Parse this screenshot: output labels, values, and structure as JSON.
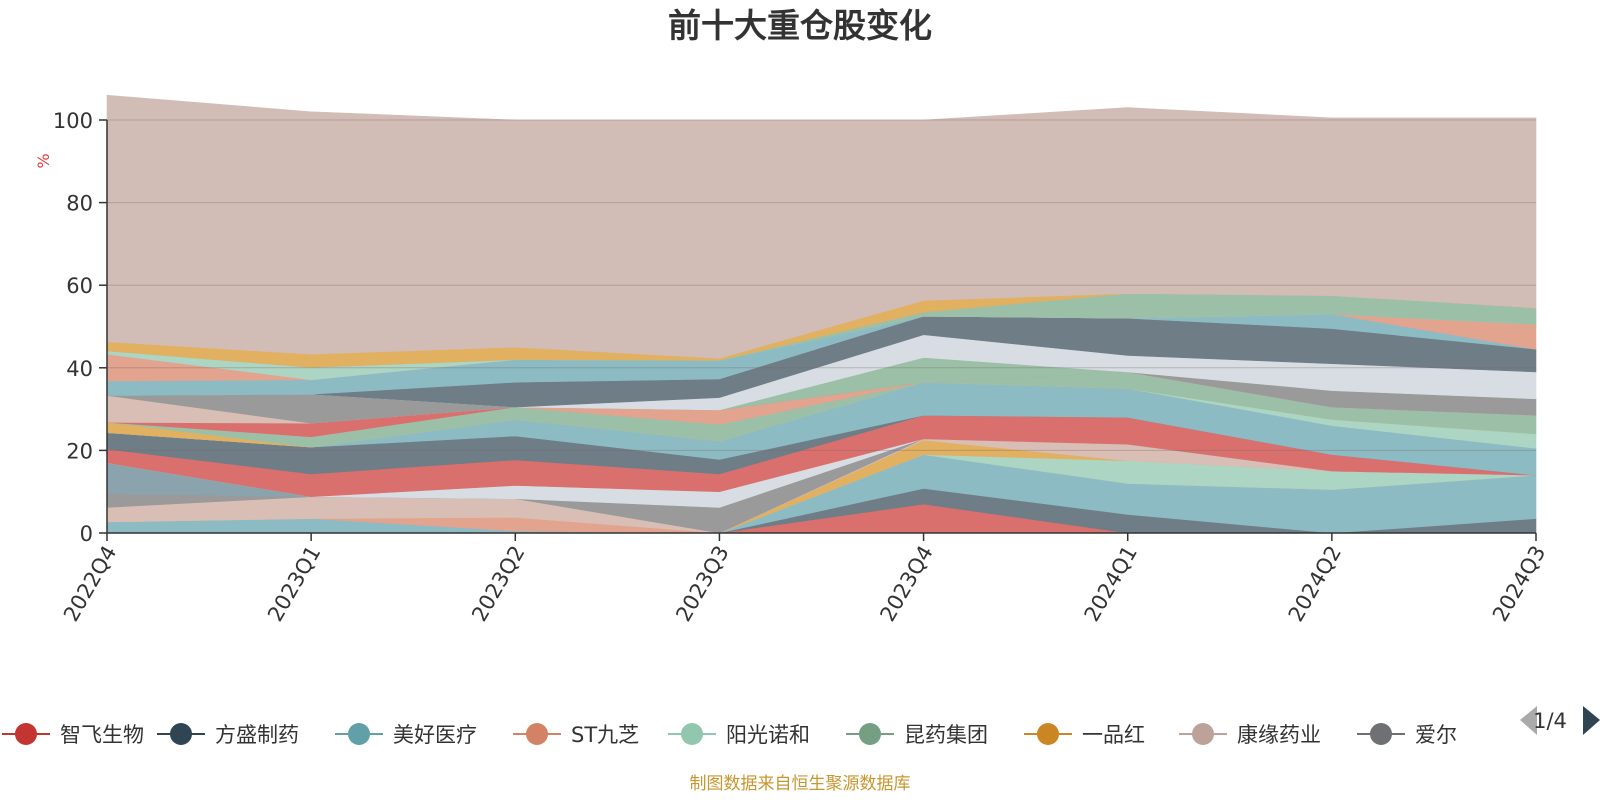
{
  "chart_data": {
    "type": "area",
    "stacked": true,
    "title": "前十大重仓股变化",
    "ylabel": "%",
    "ylim": [
      0,
      100
    ],
    "yticks": [
      0,
      20,
      40,
      60,
      80,
      100
    ],
    "grid": true,
    "categories": [
      "2022Q4",
      "2023Q1",
      "2023Q2",
      "2023Q3",
      "2023Q4",
      "2024Q1",
      "2024Q2",
      "2024Q3"
    ],
    "series": [
      {
        "name": "智飞生物",
        "color": "#d9706e",
        "values": [
          0,
          0,
          0,
          0,
          7,
          0,
          0,
          0
        ]
      },
      {
        "name": "方盛制药",
        "color": "#6f7d87",
        "values": [
          0,
          0,
          0,
          0,
          3.8,
          4.5,
          0,
          3.5
        ]
      },
      {
        "name": "美好医疗",
        "color": "#8dbbc4",
        "values": [
          2.7,
          3.5,
          0.5,
          0,
          8.2,
          7.5,
          10.5,
          10.5
        ]
      },
      {
        "name": "ST九芝",
        "color": "#e2a38f",
        "values": [
          0,
          0,
          3.3,
          0,
          0,
          0,
          0,
          0
        ]
      },
      {
        "name": "阳光诺和",
        "color": "#acd5c4",
        "values": [
          0,
          0,
          0,
          0,
          0,
          5.5,
          4.5,
          0
        ]
      },
      {
        "name": "昆药集团",
        "color": "#9cc0a7",
        "values": [
          0,
          0,
          0,
          0,
          0,
          0,
          0,
          0
        ]
      },
      {
        "name": "一品红",
        "color": "#e1b060",
        "values": [
          0,
          0,
          0,
          0,
          3.5,
          0,
          0,
          0
        ]
      },
      {
        "name": "康缘药业",
        "color": "#d9beb6",
        "values": [
          3.5,
          5.3,
          4.5,
          0,
          0.3,
          4,
          0,
          0
        ]
      },
      {
        "name": "爱尔",
        "color": "#9a9a9a",
        "values": [
          3.3,
          0,
          0,
          6.2,
          0,
          0,
          0,
          0
        ]
      },
      {
        "name": "",
        "color": "#8aa3ad",
        "values": [
          7.5,
          0,
          0,
          0,
          0,
          0,
          0,
          0
        ]
      },
      {
        "name": "",
        "color": "#d8dde4",
        "values": [
          0,
          0,
          3.2,
          3.8,
          0,
          0,
          0,
          0
        ]
      },
      {
        "name": "",
        "color": "#d9706e",
        "values": [
          3.3,
          5.5,
          6.2,
          4.3,
          5.7,
          6.5,
          4,
          0
        ]
      },
      {
        "name": "",
        "color": "#6f7d87",
        "values": [
          4,
          6.5,
          5.8,
          3.5,
          0,
          0,
          0,
          0
        ]
      },
      {
        "name": "",
        "color": "#8dbbc4",
        "values": [
          0,
          0,
          4,
          4.5,
          8,
          7,
          7,
          6.5
        ]
      },
      {
        "name": "",
        "color": "#acd5c4",
        "values": [
          0,
          0,
          0,
          0,
          0,
          0,
          1.5,
          3.5
        ]
      },
      {
        "name": "",
        "color": "#e1b060",
        "values": [
          2.5,
          0,
          0,
          0,
          0,
          0,
          0,
          0
        ]
      },
      {
        "name": "",
        "color": "#9cc0a7",
        "values": [
          0,
          2.5,
          3,
          4,
          0,
          4,
          3,
          4.5
        ]
      },
      {
        "name": "",
        "color": "#e2a38f",
        "values": [
          0,
          0,
          0,
          3.5,
          0,
          0,
          0,
          0
        ]
      },
      {
        "name": "",
        "color": "#d9706e",
        "values": [
          0,
          3.3,
          0,
          0,
          0,
          0,
          0,
          0
        ]
      },
      {
        "name": "",
        "color": "#d9beb6",
        "values": [
          6.5,
          0,
          0,
          0,
          0,
          0,
          0,
          0
        ]
      },
      {
        "name": "",
        "color": "#9a9a9a",
        "values": [
          0,
          7,
          0,
          0,
          0,
          0,
          4,
          4
        ]
      },
      {
        "name": "",
        "color": "#9cc0a7",
        "values": [
          0,
          0,
          0,
          0,
          6,
          0,
          0,
          0
        ]
      },
      {
        "name": "",
        "color": "#d8dde4",
        "values": [
          0,
          0,
          0,
          3,
          5.5,
          4,
          6.5,
          6.5
        ]
      },
      {
        "name": "",
        "color": "#6f7d87",
        "values": [
          0,
          0,
          6,
          4.5,
          4.5,
          9,
          8.5,
          5.5
        ]
      },
      {
        "name": "",
        "color": "#8dbbc4",
        "values": [
          3.5,
          3.5,
          5.5,
          4.5,
          0,
          0,
          3.5,
          0
        ]
      },
      {
        "name": "",
        "color": "#e2a38f",
        "values": [
          6.5,
          0,
          0,
          0,
          0,
          0,
          0,
          6
        ]
      },
      {
        "name": "",
        "color": "#acd5c4",
        "values": [
          0.8,
          3,
          0,
          0,
          0,
          0,
          0,
          0
        ]
      },
      {
        "name": "",
        "color": "#9cc0a7",
        "values": [
          0,
          0,
          0,
          0,
          1,
          6,
          4.5,
          4
        ]
      },
      {
        "name": "",
        "color": "#e1b060",
        "values": [
          2.2,
          3.2,
          3,
          0.5,
          2.8,
          0,
          0,
          0
        ]
      },
      {
        "name": "",
        "color": "#d1bdb6",
        "values": [
          59.7,
          58.7,
          55,
          57.7,
          43.7,
          45,
          43,
          46
        ]
      }
    ]
  },
  "legend": {
    "items": [
      {
        "name": "智飞生物",
        "color": "#c23531"
      },
      {
        "name": "方盛制药",
        "color": "#2f4554"
      },
      {
        "name": "美好医疗",
        "color": "#61a0a8"
      },
      {
        "name": "ST九芝",
        "color": "#d48265"
      },
      {
        "name": "阳光诺和",
        "color": "#91c7ae"
      },
      {
        "name": "昆药集团",
        "color": "#749f83"
      },
      {
        "name": "一品红",
        "color": "#ca8622"
      },
      {
        "name": "康缘药业",
        "color": "#bda29a"
      },
      {
        "name": "爱尔",
        "color": "#6e7074"
      }
    ],
    "page": "1/4"
  },
  "footer": {
    "source": "制图数据来自恒生聚源数据库"
  }
}
